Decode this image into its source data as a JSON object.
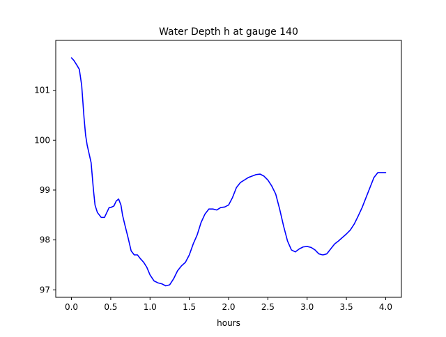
{
  "chart_data": {
    "type": "line",
    "title": "Water Depth h at gauge 140",
    "xlabel": "hours",
    "ylabel": "",
    "xlim": [
      -0.2,
      4.2
    ],
    "ylim": [
      96.85,
      102.0
    ],
    "xticks": [
      0.0,
      0.5,
      1.0,
      1.5,
      2.0,
      2.5,
      3.0,
      3.5,
      4.0
    ],
    "xtick_labels": [
      "0.0",
      "0.5",
      "1.0",
      "1.5",
      "2.0",
      "2.5",
      "3.0",
      "3.5",
      "4.0"
    ],
    "yticks": [
      97,
      98,
      99,
      100,
      101
    ],
    "ytick_labels": [
      "97",
      "98",
      "99",
      "100",
      "101"
    ],
    "grid": false,
    "legend": "none",
    "series": [
      {
        "name": "",
        "color": "#0000ff",
        "x": [
          0.0,
          0.03,
          0.07,
          0.1,
          0.13,
          0.16,
          0.18,
          0.2,
          0.25,
          0.28,
          0.3,
          0.33,
          0.38,
          0.42,
          0.45,
          0.48,
          0.5,
          0.54,
          0.57,
          0.6,
          0.63,
          0.65,
          0.68,
          0.72,
          0.76,
          0.8,
          0.84,
          0.88,
          0.92,
          0.96,
          1.0,
          1.05,
          1.1,
          1.15,
          1.2,
          1.25,
          1.3,
          1.35,
          1.4,
          1.45,
          1.5,
          1.55,
          1.6,
          1.65,
          1.7,
          1.75,
          1.8,
          1.85,
          1.9,
          1.95,
          2.0,
          2.05,
          2.1,
          2.15,
          2.2,
          2.25,
          2.3,
          2.35,
          2.4,
          2.45,
          2.5,
          2.55,
          2.6,
          2.65,
          2.7,
          2.75,
          2.8,
          2.85,
          2.9,
          2.95,
          3.0,
          3.05,
          3.1,
          3.15,
          3.2,
          3.25,
          3.3,
          3.35,
          3.4,
          3.45,
          3.5,
          3.55,
          3.6,
          3.65,
          3.7,
          3.75,
          3.8,
          3.85,
          3.9,
          3.95,
          4.0
        ],
        "values": [
          101.65,
          101.6,
          101.5,
          101.42,
          101.1,
          100.45,
          100.1,
          99.9,
          99.55,
          99.0,
          98.7,
          98.55,
          98.45,
          98.45,
          98.55,
          98.65,
          98.65,
          98.68,
          98.78,
          98.82,
          98.7,
          98.5,
          98.3,
          98.05,
          97.78,
          97.7,
          97.7,
          97.62,
          97.55,
          97.45,
          97.3,
          97.18,
          97.14,
          97.12,
          97.08,
          97.1,
          97.22,
          97.38,
          97.48,
          97.55,
          97.7,
          97.92,
          98.1,
          98.35,
          98.52,
          98.62,
          98.62,
          98.6,
          98.65,
          98.66,
          98.7,
          98.85,
          99.05,
          99.15,
          99.2,
          99.25,
          99.28,
          99.31,
          99.32,
          99.28,
          99.2,
          99.08,
          98.92,
          98.62,
          98.28,
          97.98,
          97.8,
          97.76,
          97.82,
          97.86,
          97.87,
          97.85,
          97.8,
          97.72,
          97.7,
          97.72,
          97.82,
          97.92,
          97.98,
          98.05,
          98.12,
          98.2,
          98.32,
          98.48,
          98.65,
          98.85,
          99.05,
          99.25,
          99.35,
          99.35,
          99.35
        ]
      }
    ]
  }
}
